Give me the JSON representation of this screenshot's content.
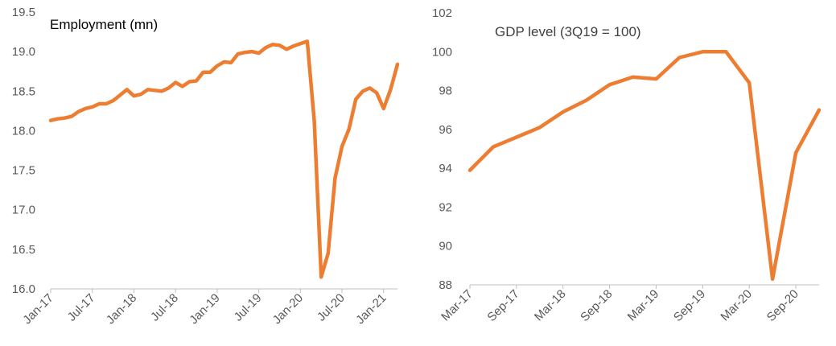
{
  "chart_data": [
    {
      "type": "line",
      "title": "Employment (mn)",
      "ylim": [
        16.0,
        19.5
      ],
      "yticks": [
        "16.0",
        "16.5",
        "17.0",
        "17.5",
        "18.0",
        "18.5",
        "19.0",
        "19.5"
      ],
      "xticks": [
        "Jan-17",
        "Jul-17",
        "Jan-18",
        "Jul-18",
        "Jan-19",
        "Jul-19",
        "Jan-20",
        "Jul-20",
        "Jan-21"
      ],
      "x": [
        "Jan-17",
        "Feb-17",
        "Mar-17",
        "Apr-17",
        "May-17",
        "Jun-17",
        "Jul-17",
        "Aug-17",
        "Sep-17",
        "Oct-17",
        "Nov-17",
        "Dec-17",
        "Jan-18",
        "Feb-18",
        "Mar-18",
        "Apr-18",
        "May-18",
        "Jun-18",
        "Jul-18",
        "Aug-18",
        "Sep-18",
        "Oct-18",
        "Nov-18",
        "Dec-18",
        "Jan-19",
        "Feb-19",
        "Mar-19",
        "Apr-19",
        "May-19",
        "Jun-19",
        "Jul-19",
        "Aug-19",
        "Sep-19",
        "Oct-19",
        "Nov-19",
        "Dec-19",
        "Jan-20",
        "Feb-20",
        "Mar-20",
        "Apr-20",
        "May-20",
        "Jun-20",
        "Jul-20",
        "Aug-20",
        "Sep-20",
        "Oct-20",
        "Nov-20",
        "Dec-20",
        "Jan-21",
        "Feb-21",
        "Mar-21"
      ],
      "series": [
        {
          "values": [
            18.13,
            18.15,
            18.16,
            18.18,
            18.24,
            18.28,
            18.3,
            18.34,
            18.34,
            18.38,
            18.45,
            18.52,
            18.44,
            18.46,
            18.52,
            18.51,
            18.5,
            18.54,
            18.61,
            18.56,
            18.62,
            18.63,
            18.74,
            18.74,
            18.82,
            18.87,
            18.86,
            18.97,
            18.99,
            19.0,
            18.98,
            19.05,
            19.09,
            19.08,
            19.03,
            19.07,
            19.1,
            19.13,
            18.12,
            16.15,
            16.45,
            17.4,
            17.8,
            18.02,
            18.4,
            18.5,
            18.54,
            18.48,
            18.28,
            18.52,
            18.84
          ],
          "color": "#ed7d31"
        }
      ]
    },
    {
      "type": "line",
      "title": "GDP level (3Q19 = 100)",
      "ylim": [
        88,
        102
      ],
      "yticks": [
        "88",
        "90",
        "92",
        "94",
        "96",
        "98",
        "100",
        "102"
      ],
      "xticks": [
        "Mar-17",
        "Sep-17",
        "Mar-18",
        "Sep-18",
        "Mar-19",
        "Sep-19",
        "Mar-20",
        "Sep-20"
      ],
      "x": [
        "Mar-17",
        "Jun-17",
        "Sep-17",
        "Dec-17",
        "Mar-18",
        "Jun-18",
        "Sep-18",
        "Dec-18",
        "Mar-19",
        "Jun-19",
        "Sep-19",
        "Dec-19",
        "Mar-20",
        "Jun-20",
        "Sep-20",
        "Dec-20"
      ],
      "series": [
        {
          "values": [
            93.9,
            95.1,
            95.6,
            96.1,
            96.9,
            97.5,
            98.3,
            98.7,
            98.6,
            99.7,
            100.0,
            100.0,
            98.4,
            88.3,
            94.8,
            97.0
          ],
          "color": "#ed7d31"
        }
      ]
    }
  ]
}
